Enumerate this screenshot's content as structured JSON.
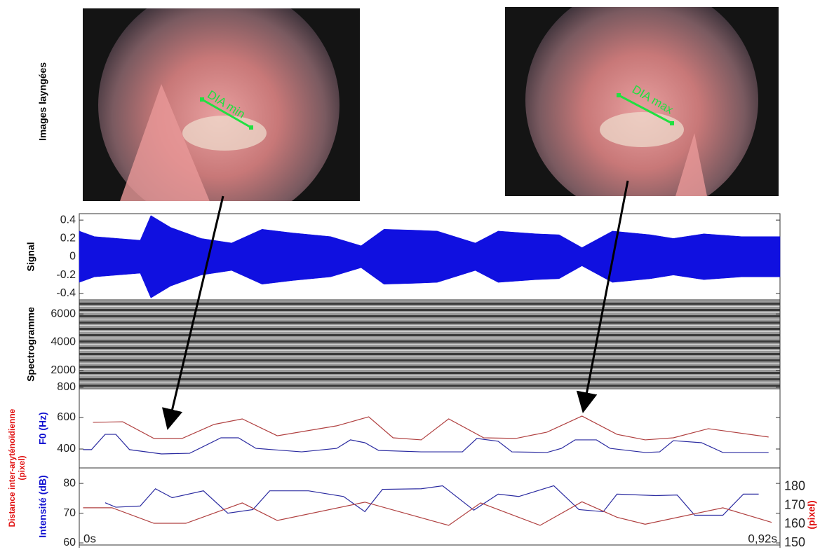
{
  "images": {
    "label": "Images layngées",
    "left_label": "DIA min",
    "right_label": "DIA max"
  },
  "chart_data": [
    {
      "type": "envelope",
      "ylabel": "Signal",
      "color": "#1010e0",
      "x": [
        0,
        0.02,
        0.05,
        0.08,
        0.094,
        0.12,
        0.16,
        0.2,
        0.24,
        0.28,
        0.33,
        0.37,
        0.4,
        0.44,
        0.47,
        0.52,
        0.55,
        0.6,
        0.63,
        0.66,
        0.7,
        0.75,
        0.78,
        0.82,
        0.87,
        0.92
      ],
      "values": [
        0.28,
        0.22,
        0.2,
        0.18,
        0.45,
        0.32,
        0.2,
        0.15,
        0.3,
        0.26,
        0.22,
        0.12,
        0.3,
        0.29,
        0.28,
        0.15,
        0.28,
        0.25,
        0.24,
        0.1,
        0.28,
        0.24,
        0.2,
        0.25,
        0.22,
        0.22
      ],
      "xlim": [
        0,
        0.92
      ],
      "ylim": [
        -0.47,
        0.47
      ],
      "yticks": [
        0.4,
        0.2,
        0,
        -0.2,
        -0.4
      ]
    },
    {
      "type": "spectrogram",
      "ylabel": "Spectrogramme",
      "xlim": [
        0,
        0.92
      ],
      "ylim": [
        700,
        7000
      ],
      "yticks": [
        6000,
        4000,
        2000,
        800
      ]
    },
    {
      "type": "line",
      "ylabel": "F0 (Hz)",
      "xlim": [
        0,
        0.92
      ],
      "ylim": [
        280,
        782
      ],
      "yticks": [
        600,
        400
      ],
      "series": [
        {
          "color": "#2a2aa0",
          "x": [
            0.005,
            0.016,
            0.034,
            0.048,
            0.066,
            0.108,
            0.145,
            0.186,
            0.209,
            0.232,
            0.292,
            0.338,
            0.356,
            0.375,
            0.393,
            0.449,
            0.503,
            0.522,
            0.55,
            0.568,
            0.614,
            0.633,
            0.651,
            0.679,
            0.697,
            0.743,
            0.762,
            0.78,
            0.817,
            0.845,
            0.905
          ],
          "values": [
            396,
            396,
            493,
            493,
            396,
            369,
            373,
            471,
            471,
            404,
            382,
            404,
            458,
            440,
            391,
            382,
            382,
            467,
            449,
            382,
            378,
            404,
            458,
            458,
            404,
            378,
            382,
            453,
            440,
            378,
            378
          ]
        },
        {
          "color": "#b04040",
          "x": [
            0.018,
            0.057,
            0.098,
            0.135,
            0.177,
            0.214,
            0.26,
            0.338,
            0.38,
            0.412,
            0.449,
            0.485,
            0.531,
            0.573,
            0.614,
            0.66,
            0.706,
            0.743,
            0.78,
            0.826,
            0.905
          ],
          "values": [
            569,
            573,
            467,
            467,
            556,
            591,
            484,
            547,
            604,
            471,
            458,
            591,
            471,
            467,
            507,
            609,
            493,
            458,
            471,
            529,
            476
          ]
        }
      ]
    },
    {
      "type": "line",
      "ylabel": "Intensité (dB)",
      "y2label": "(pixel)",
      "distance_label": [
        "Distance inter-aryténoïdienne",
        "(pixel)"
      ],
      "xlim": [
        0,
        0.92
      ],
      "ylim": [
        59.3,
        85.2
      ],
      "yticks": [
        80,
        70,
        60
      ],
      "y2lim": [
        148.9,
        190.1
      ],
      "y2ticks": [
        180,
        170,
        160,
        150
      ],
      "xticks": [
        {
          "value": 0,
          "label": "0s"
        },
        {
          "value": 0.92,
          "label": "0,92s"
        }
      ],
      "series": [
        {
          "color": "#2a2aa0",
          "x": [
            0.034,
            0.048,
            0.08,
            0.1,
            0.122,
            0.163,
            0.195,
            0.228,
            0.25,
            0.301,
            0.347,
            0.375,
            0.398,
            0.449,
            0.477,
            0.518,
            0.55,
            0.577,
            0.623,
            0.656,
            0.688,
            0.706,
            0.757,
            0.785,
            0.808,
            0.845,
            0.872,
            0.892
          ],
          "values": [
            73.5,
            72,
            72.4,
            78.2,
            75.2,
            77.5,
            70,
            71.2,
            77.5,
            77.5,
            75.6,
            70.5,
            78,
            78.2,
            79.2,
            71,
            76.4,
            75.6,
            79.2,
            71.2,
            70.5,
            76.4,
            75.9,
            76.1,
            69.3,
            69.3,
            76.4,
            76.4
          ]
        },
        {
          "color": "#b04040",
          "axis": "y2",
          "x": [
            0.005,
            0.043,
            0.098,
            0.14,
            0.214,
            0.26,
            0.375,
            0.485,
            0.527,
            0.605,
            0.66,
            0.706,
            0.743,
            0.845,
            0.909
          ],
          "values": [
            168.8,
            168.8,
            160.5,
            160.5,
            171.4,
            162,
            171.8,
            159.4,
            171.4,
            159.4,
            172,
            163.7,
            160,
            168.8,
            161
          ]
        }
      ]
    }
  ]
}
